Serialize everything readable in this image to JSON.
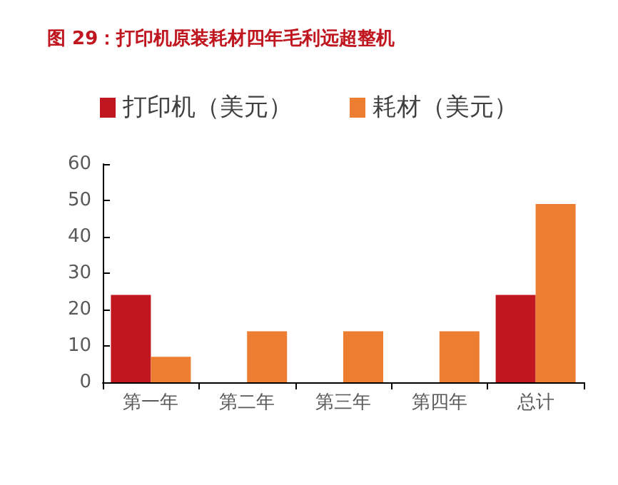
{
  "chart_data": {
    "type": "bar",
    "title": "图 29：打印机原装耗材四年毛利远超整机",
    "categories": [
      "第一年",
      "第二年",
      "第三年",
      "第四年",
      "总计"
    ],
    "series": [
      {
        "name": "打印机（美元）",
        "color": "#c0161f",
        "values": [
          24,
          0,
          0,
          0,
          24
        ]
      },
      {
        "name": "耗材（美元）",
        "color": "#ed7d31",
        "values": [
          7,
          14,
          14,
          14,
          49
        ]
      }
    ],
    "ylim": [
      0,
      60
    ],
    "yticks": [
      0,
      10,
      20,
      30,
      40,
      50,
      60
    ],
    "grid": false,
    "legend": "top"
  }
}
